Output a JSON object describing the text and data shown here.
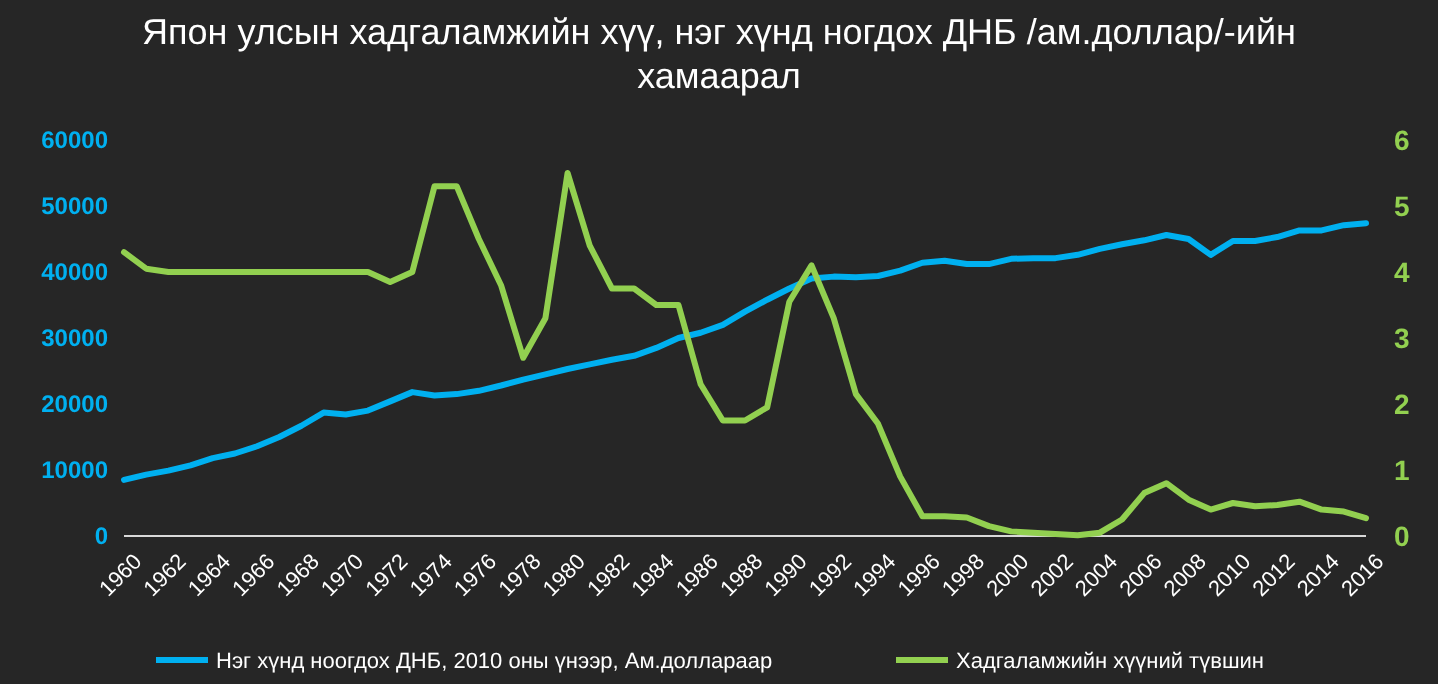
{
  "chart_data": {
    "type": "line",
    "title": "Япон улсын хадгаламжийн хүү, нэг хүнд ногдох ДНБ /ам.доллар/-ийн хамаарал",
    "categories": [
      "1960",
      null,
      "1962",
      null,
      "1964",
      null,
      "1966",
      null,
      "1968",
      null,
      "1970",
      null,
      "1972",
      null,
      "1974",
      null,
      "1976",
      null,
      "1978",
      null,
      "1980",
      null,
      "1982",
      null,
      "1984",
      null,
      "1986",
      null,
      "1988",
      null,
      "1990",
      null,
      "1992",
      null,
      "1994",
      null,
      "1996",
      null,
      "1998",
      null,
      "2000",
      null,
      "2002",
      null,
      "2004",
      null,
      "2006",
      null,
      "2008",
      null,
      "2010",
      null,
      "2012",
      null,
      "2014",
      null,
      "2016"
    ],
    "ylim": [
      0,
      60000
    ],
    "yticks": [
      0,
      10000,
      20000,
      30000,
      40000,
      50000,
      60000
    ],
    "y2lim": [
      0,
      6
    ],
    "y2ticks": [
      0,
      1,
      2,
      3,
      4,
      5,
      6
    ],
    "legend": "bottom",
    "grid": false,
    "series": [
      {
        "name": "Нэг хүнд ноогдох ДНБ, 2010 оны үнээр, Ам.доллараар",
        "color": "#00b0f0",
        "values": [
          8500,
          9300,
          9900,
          10700,
          11800,
          12500,
          13600,
          15000,
          16700,
          18700,
          18400,
          19000,
          20400,
          21800,
          21300,
          21500,
          22000,
          22800,
          23700,
          24500,
          25300,
          26000,
          26700,
          27300,
          28500,
          30000,
          30800,
          32000,
          34000,
          35800,
          37500,
          39000,
          39300,
          39200,
          39400,
          40200,
          41400,
          41700,
          41200,
          41200,
          42000,
          42100,
          42100,
          42600,
          43500,
          44200,
          44800,
          45600,
          45000,
          42600,
          44700,
          44700,
          45300,
          46300,
          46300,
          47100,
          47400
        ]
      },
      {
        "name": "Хадгаламжийн хүүний түвшин",
        "color": "#92d050",
        "axis": "y2",
        "values": [
          4.3,
          4.05,
          4,
          4,
          4,
          4,
          4,
          4,
          4,
          4,
          4,
          4,
          3.85,
          4,
          5.3,
          5.3,
          4.5,
          3.8,
          2.7,
          3.3,
          5.5,
          4.4,
          3.75,
          3.75,
          3.5,
          3.5,
          2.3,
          1.75,
          1.75,
          1.95,
          3.55,
          4.1,
          3.3,
          2.15,
          1.7,
          0.9,
          0.3,
          0.3,
          0.28,
          0.15,
          0.07,
          0.05,
          0.03,
          0.01,
          0.05,
          0.25,
          0.65,
          0.8,
          0.55,
          0.4,
          0.5,
          0.45,
          0.47,
          0.52,
          0.4,
          0.37,
          0.27
        ]
      }
    ]
  }
}
